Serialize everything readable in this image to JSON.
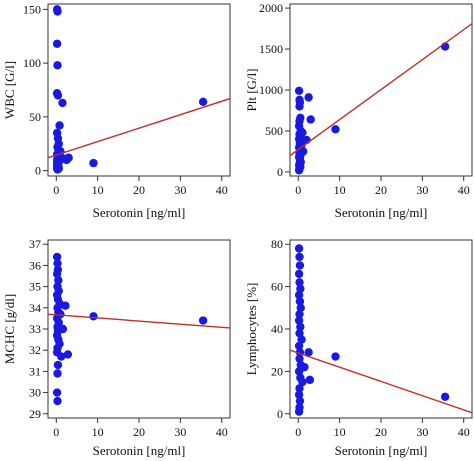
{
  "chart_data": [
    {
      "type": "scatter",
      "xlabel": "Serotonin [ng/ml]",
      "ylabel": "WBC [G/l]",
      "xlim": [
        -2,
        42
      ],
      "ylim": [
        -5,
        155
      ],
      "xticks": [
        0,
        10,
        20,
        30,
        40
      ],
      "yticks": [
        0,
        50,
        100,
        150
      ],
      "xtick_labels": [
        "0",
        "10",
        "20",
        "30",
        "40"
      ],
      "ytick_labels": [
        "0",
        "50",
        "100",
        "150"
      ],
      "grid": false,
      "marker_color": "#1a1adf",
      "line_color": "#c0302a",
      "points": [
        [
          0.2,
          150
        ],
        [
          0.3,
          148
        ],
        [
          0.2,
          118
        ],
        [
          0.3,
          98
        ],
        [
          0.2,
          72
        ],
        [
          0.4,
          70
        ],
        [
          1.5,
          63
        ],
        [
          0.8,
          42
        ],
        [
          0.2,
          35
        ],
        [
          0.4,
          30
        ],
        [
          0.6,
          25
        ],
        [
          0.3,
          22
        ],
        [
          0.5,
          20
        ],
        [
          1.0,
          18
        ],
        [
          0.2,
          15
        ],
        [
          0.3,
          14
        ],
        [
          0.8,
          13
        ],
        [
          1.2,
          12
        ],
        [
          2.0,
          11
        ],
        [
          2.5,
          10
        ],
        [
          3.0,
          12
        ],
        [
          0.2,
          10
        ],
        [
          0.4,
          9
        ],
        [
          0.6,
          8
        ],
        [
          0.2,
          7
        ],
        [
          0.3,
          6
        ],
        [
          0.5,
          5
        ],
        [
          0.2,
          4
        ],
        [
          0.4,
          3
        ],
        [
          0.2,
          2
        ],
        [
          0.3,
          1
        ],
        [
          0.6,
          2
        ],
        [
          9,
          7
        ],
        [
          35.5,
          64
        ]
      ],
      "fit_line": [
        [
          -2,
          12
        ],
        [
          42,
          67
        ]
      ]
    },
    {
      "type": "scatter",
      "xlabel": "Serotonin [ng/ml]",
      "ylabel": "Plt [G/l]",
      "xlim": [
        -2,
        42
      ],
      "ylim": [
        -50,
        2050
      ],
      "xticks": [
        0,
        10,
        20,
        30,
        40
      ],
      "yticks": [
        0,
        500,
        1000,
        1500,
        2000
      ],
      "xtick_labels": [
        "0",
        "10",
        "20",
        "30",
        "40"
      ],
      "ytick_labels": [
        "0",
        "500",
        "1000",
        "1500",
        "2000"
      ],
      "grid": false,
      "marker_color": "#1a1adf",
      "line_color": "#c0302a",
      "points": [
        [
          0.2,
          990
        ],
        [
          0.3,
          880
        ],
        [
          0.4,
          850
        ],
        [
          0.3,
          800
        ],
        [
          2.5,
          910
        ],
        [
          0.5,
          660
        ],
        [
          0.3,
          620
        ],
        [
          3.0,
          640
        ],
        [
          0.2,
          560
        ],
        [
          0.6,
          500
        ],
        [
          1.0,
          480
        ],
        [
          0.3,
          460
        ],
        [
          0.5,
          420
        ],
        [
          0.2,
          400
        ],
        [
          2.0,
          390
        ],
        [
          0.4,
          350
        ],
        [
          0.8,
          330
        ],
        [
          0.2,
          300
        ],
        [
          0.6,
          280
        ],
        [
          1.2,
          250
        ],
        [
          0.3,
          230
        ],
        [
          0.5,
          200
        ],
        [
          0.2,
          180
        ],
        [
          0.4,
          150
        ],
        [
          0.6,
          120
        ],
        [
          0.3,
          100
        ],
        [
          0.2,
          80
        ],
        [
          0.5,
          60
        ],
        [
          0.3,
          40
        ],
        [
          0.2,
          20
        ],
        [
          9,
          520
        ],
        [
          35.5,
          1530
        ]
      ],
      "fit_line": [
        [
          -2,
          200
        ],
        [
          42,
          1810
        ]
      ]
    },
    {
      "type": "scatter",
      "xlabel": "Serotonin [ng/ml]",
      "ylabel": "MCHC [g/dl]",
      "xlim": [
        -2,
        42
      ],
      "ylim": [
        28.8,
        37.2
      ],
      "xticks": [
        0,
        10,
        20,
        30,
        40
      ],
      "yticks": [
        29,
        30,
        31,
        32,
        33,
        34,
        35,
        36,
        37
      ],
      "xtick_labels": [
        "0",
        "10",
        "20",
        "30",
        "40"
      ],
      "ytick_labels": [
        "29",
        "30",
        "31",
        "32",
        "33",
        "34",
        "35",
        "36",
        "37"
      ],
      "grid": false,
      "marker_color": "#1a1adf",
      "line_color": "#c0302a",
      "points": [
        [
          0.2,
          36.4
        ],
        [
          0.3,
          36.1
        ],
        [
          0.4,
          35.8
        ],
        [
          0.2,
          35.6
        ],
        [
          0.5,
          35.3
        ],
        [
          0.3,
          35.0
        ],
        [
          0.6,
          34.8
        ],
        [
          0.2,
          34.6
        ],
        [
          0.4,
          34.4
        ],
        [
          0.8,
          34.2
        ],
        [
          0.3,
          34.0
        ],
        [
          0.5,
          33.8
        ],
        [
          1.0,
          33.7
        ],
        [
          0.2,
          33.5
        ],
        [
          0.6,
          33.3
        ],
        [
          0.3,
          33.1
        ],
        [
          0.4,
          32.9
        ],
        [
          0.2,
          32.7
        ],
        [
          0.5,
          32.5
        ],
        [
          0.8,
          32.3
        ],
        [
          0.3,
          32.1
        ],
        [
          0.2,
          31.9
        ],
        [
          1.2,
          31.7
        ],
        [
          0.4,
          31.3
        ],
        [
          0.3,
          30.9
        ],
        [
          0.2,
          30.0
        ],
        [
          0.3,
          29.6
        ],
        [
          2.2,
          34.1
        ],
        [
          2.8,
          31.8
        ],
        [
          1.6,
          33.0
        ],
        [
          9,
          33.6
        ],
        [
          35.5,
          33.4
        ]
      ],
      "fit_line": [
        [
          -2,
          33.7
        ],
        [
          42,
          33.05
        ]
      ]
    },
    {
      "type": "scatter",
      "xlabel": "Serotonin [ng/ml]",
      "ylabel": "Lymphocytes [%]",
      "xlim": [
        -2,
        42
      ],
      "ylim": [
        -2,
        82
      ],
      "xticks": [
        0,
        10,
        20,
        30,
        40
      ],
      "yticks": [
        0,
        20,
        40,
        60,
        80
      ],
      "xtick_labels": [
        "0",
        "10",
        "20",
        "30",
        "40"
      ],
      "ytick_labels": [
        "0",
        "20",
        "40",
        "60",
        "80"
      ],
      "grid": false,
      "marker_color": "#1a1adf",
      "line_color": "#c0302a",
      "points": [
        [
          0.2,
          78
        ],
        [
          0.3,
          74
        ],
        [
          0.4,
          70
        ],
        [
          0.2,
          66
        ],
        [
          0.3,
          62
        ],
        [
          0.5,
          59
        ],
        [
          0.2,
          56
        ],
        [
          0.4,
          53
        ],
        [
          0.6,
          50
        ],
        [
          0.3,
          47
        ],
        [
          0.2,
          44
        ],
        [
          0.5,
          41
        ],
        [
          0.3,
          38
        ],
        [
          0.8,
          35
        ],
        [
          0.2,
          32
        ],
        [
          0.4,
          29
        ],
        [
          0.3,
          26
        ],
        [
          0.6,
          23
        ],
        [
          0.2,
          20
        ],
        [
          0.5,
          17
        ],
        [
          1.0,
          15
        ],
        [
          0.3,
          12
        ],
        [
          0.2,
          9
        ],
        [
          0.4,
          6
        ],
        [
          0.3,
          3
        ],
        [
          0.2,
          1
        ],
        [
          2.5,
          29
        ],
        [
          2.8,
          16
        ],
        [
          1.5,
          22
        ],
        [
          9,
          27
        ],
        [
          35.5,
          8
        ]
      ],
      "fit_line": [
        [
          -2,
          30
        ],
        [
          42,
          0.5
        ]
      ]
    }
  ]
}
